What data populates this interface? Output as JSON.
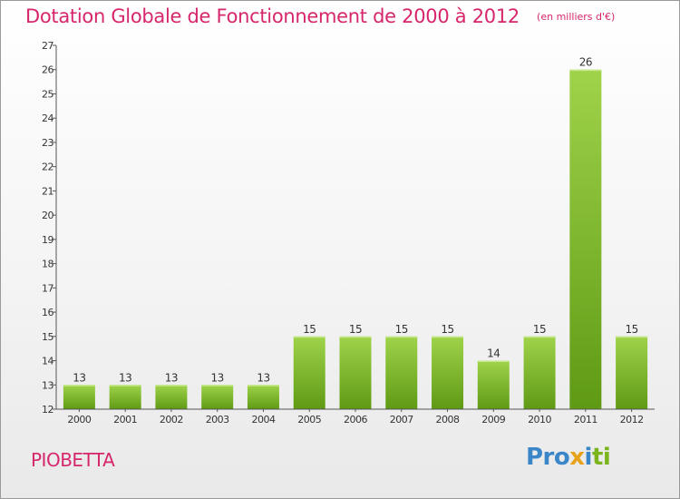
{
  "title": "Dotation Globale de Fonctionnement de 2000 à 2012",
  "subtitle": "(en milliers d'€)",
  "commune": "PIOBETTA",
  "logo": {
    "p1": "Pro",
    "p2": "x",
    "p3": "i",
    "p4": "ti"
  },
  "colors": {
    "title": "#d6266c",
    "bar_light": "#9fd34a",
    "bar_dark": "#5f9a14",
    "axis": "#555555"
  },
  "chart_data": {
    "type": "bar",
    "title": "Dotation Globale de Fonctionnement de 2000 à 2012",
    "subtitle": "(en milliers d'€)",
    "categories": [
      "2000",
      "2001",
      "2002",
      "2003",
      "2004",
      "2005",
      "2006",
      "2007",
      "2008",
      "2009",
      "2010",
      "2011",
      "2012"
    ],
    "values": [
      13,
      13,
      13,
      13,
      13,
      15,
      15,
      15,
      15,
      14,
      15,
      26,
      15
    ],
    "ylim": [
      12,
      27
    ],
    "yticks": [
      12,
      13,
      14,
      15,
      16,
      17,
      18,
      19,
      20,
      21,
      22,
      23,
      24,
      25,
      26,
      27
    ],
    "xlabel": "",
    "ylabel": ""
  }
}
